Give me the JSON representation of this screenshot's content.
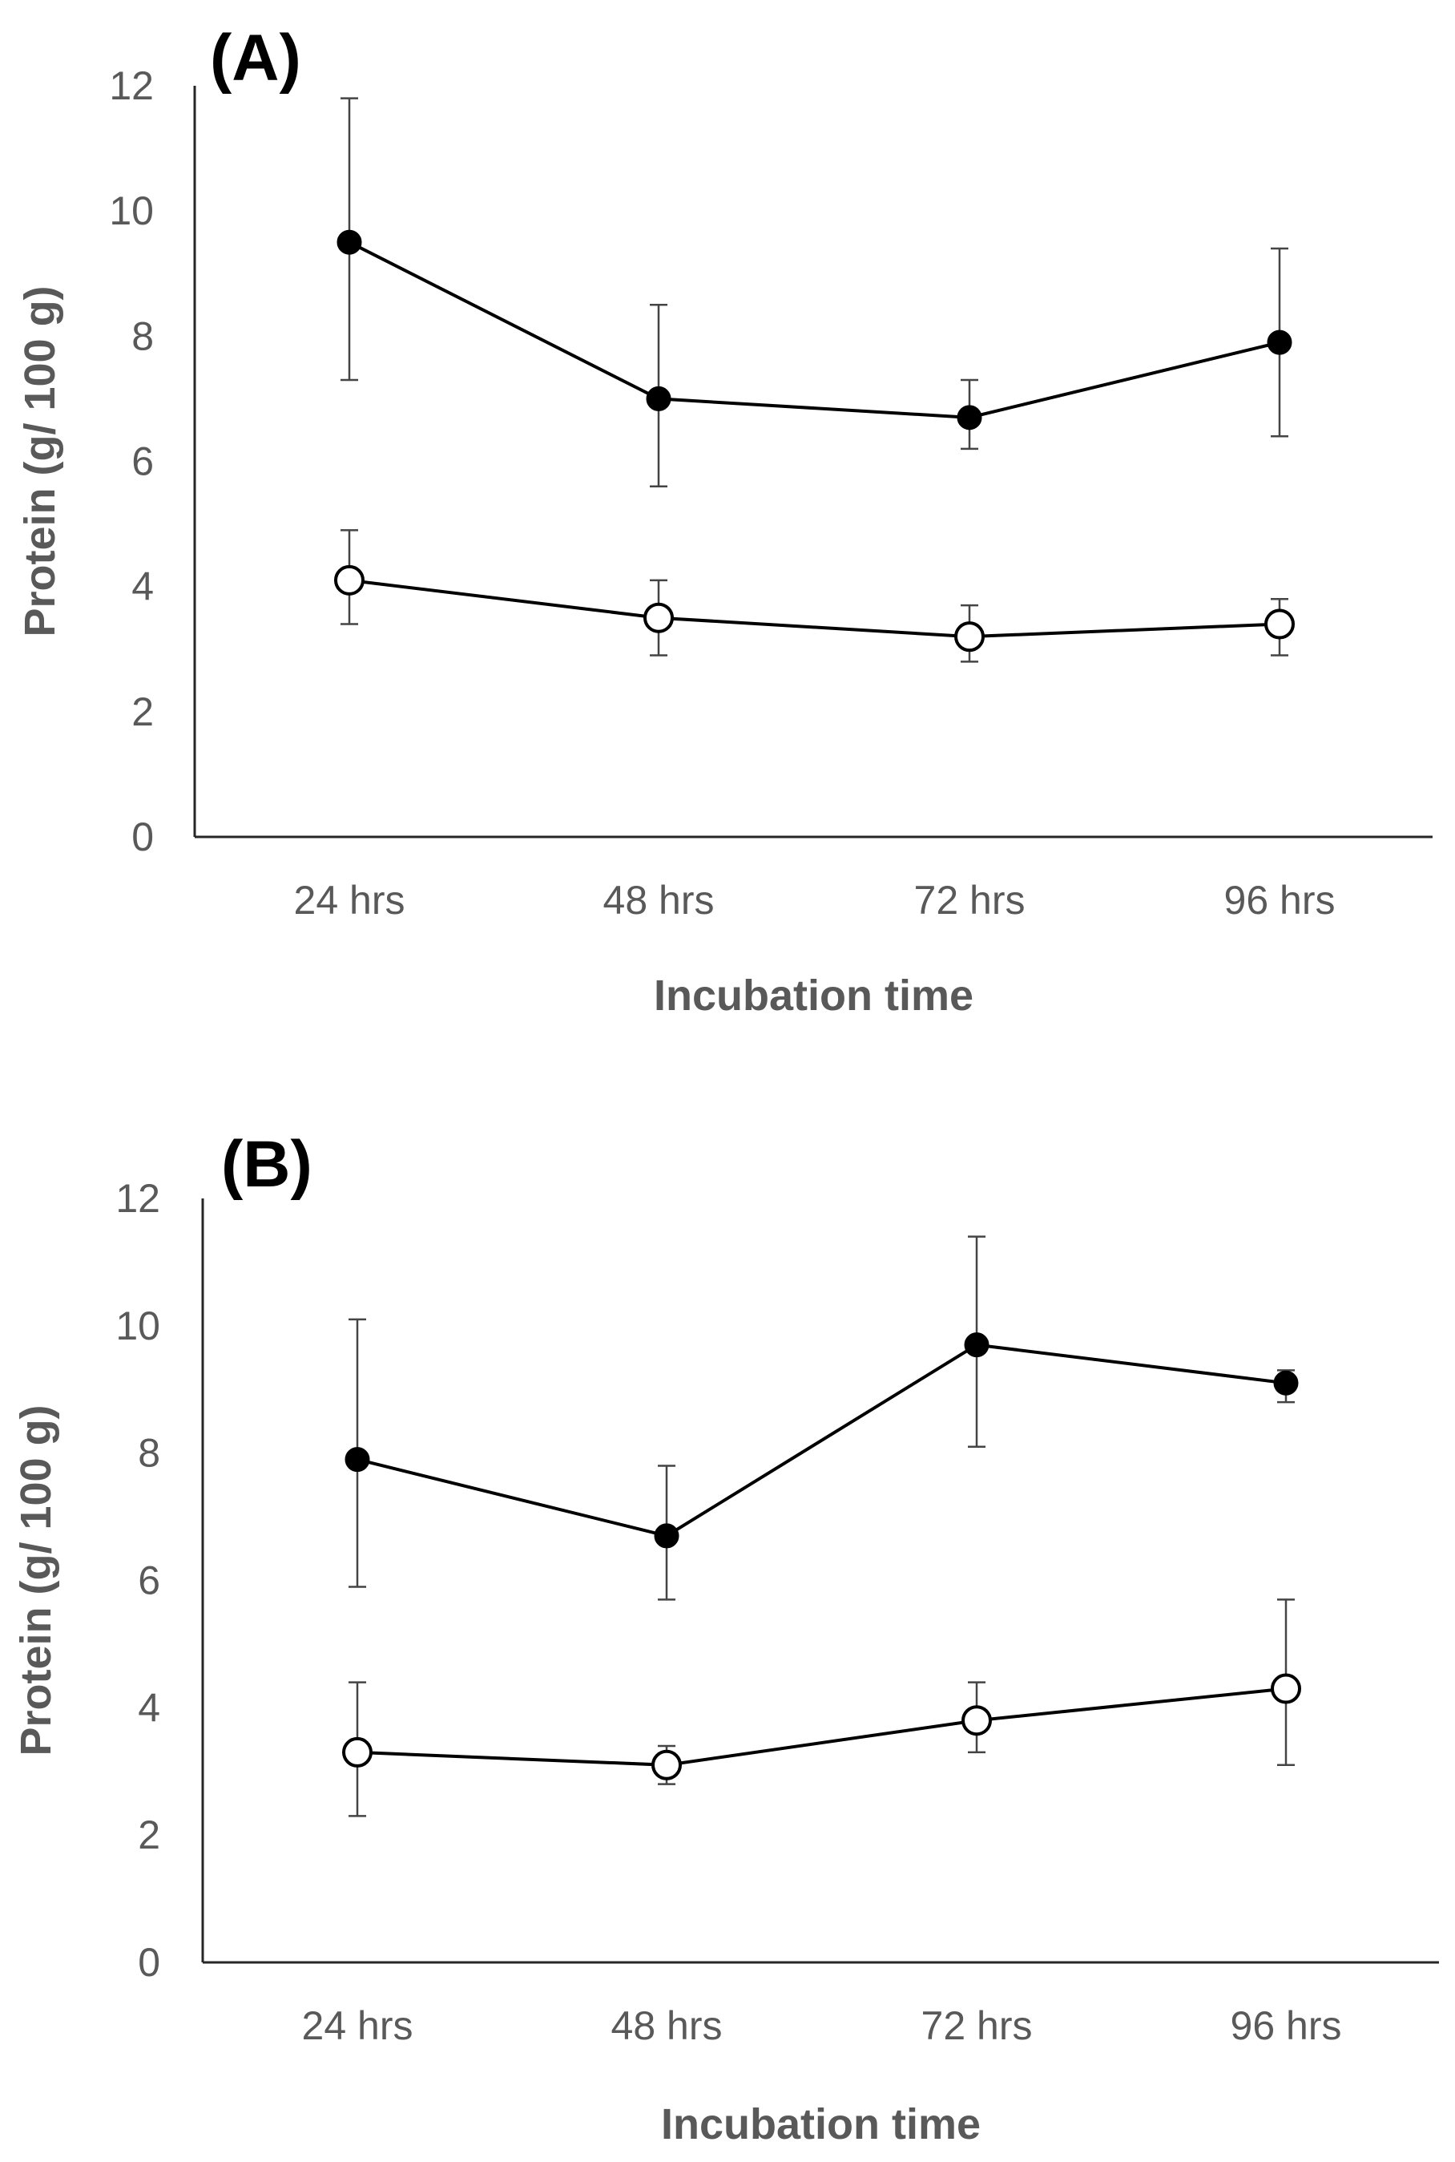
{
  "chart_data": [
    {
      "type": "line",
      "panel_label": "(A)",
      "categories": [
        "24 hrs",
        "48 hrs",
        "72 hrs",
        "96 hrs"
      ],
      "xlabel": "Incubation time",
      "ylabel": "Protein (g/ 100 g)",
      "ylim": [
        0,
        12
      ],
      "yticks": [
        "0",
        "2",
        "4",
        "6",
        "8",
        "10",
        "12"
      ],
      "grid": false,
      "legend": "none",
      "series": [
        {
          "name": "filled",
          "marker": "filled-circle",
          "values": [
            9.5,
            7.0,
            6.7,
            7.9
          ],
          "err_low": [
            7.3,
            5.6,
            6.2,
            6.4
          ],
          "err_high": [
            11.8,
            8.5,
            7.3,
            9.4
          ]
        },
        {
          "name": "open",
          "marker": "open-circle",
          "values": [
            4.1,
            3.5,
            3.2,
            3.4
          ],
          "err_low": [
            3.4,
            2.9,
            2.8,
            2.9
          ],
          "err_high": [
            4.9,
            4.1,
            3.7,
            3.8
          ]
        }
      ]
    },
    {
      "type": "line",
      "panel_label": "(B)",
      "categories": [
        "24 hrs",
        "48 hrs",
        "72 hrs",
        "96 hrs"
      ],
      "xlabel": "Incubation time",
      "ylabel": "Protein (g/ 100 g)",
      "ylim": [
        0,
        12
      ],
      "yticks": [
        "0",
        "2",
        "4",
        "6",
        "8",
        "10",
        "12"
      ],
      "grid": false,
      "legend": "none",
      "series": [
        {
          "name": "filled",
          "marker": "filled-circle",
          "values": [
            7.9,
            6.7,
            9.7,
            9.1
          ],
          "err_low": [
            5.9,
            5.7,
            8.1,
            8.8
          ],
          "err_high": [
            10.1,
            7.8,
            11.4,
            9.3
          ]
        },
        {
          "name": "open",
          "marker": "open-circle",
          "values": [
            3.3,
            3.1,
            3.8,
            4.3
          ],
          "err_low": [
            2.3,
            2.8,
            3.3,
            3.1
          ],
          "err_high": [
            4.4,
            3.4,
            4.4,
            5.7
          ]
        }
      ]
    }
  ]
}
